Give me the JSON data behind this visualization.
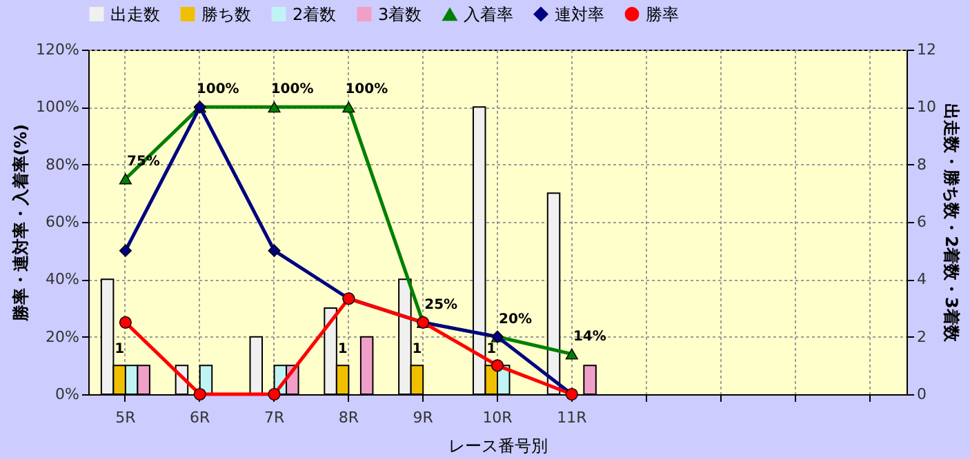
{
  "chart_data": {
    "type": "bar",
    "categories": [
      "5R",
      "6R",
      "7R",
      "8R",
      "9R",
      "10R",
      "11R",
      null,
      null,
      null,
      null
    ],
    "xlabel": "レース番号別",
    "ylabel": "勝率・連対率・入着率(%)",
    "y2label": "出走数・勝ち数・2着数・3着数",
    "ylim": [
      0,
      120
    ],
    "yticks": [
      {
        "value": 0,
        "label": "0%"
      },
      {
        "value": 20,
        "label": "20%"
      },
      {
        "value": 40,
        "label": "40%"
      },
      {
        "value": 60,
        "label": "60%"
      },
      {
        "value": 80,
        "label": "80%"
      },
      {
        "value": 100,
        "label": "100%"
      },
      {
        "value": 120,
        "label": "120%"
      }
    ],
    "y2lim": [
      0,
      12
    ],
    "y2ticks": [
      0,
      2,
      4,
      6,
      8,
      10,
      12
    ],
    "grid": true,
    "legend": "top",
    "series": [
      {
        "name": "出走数",
        "type": "bar",
        "axis": "y2",
        "color": "#f0f0f0",
        "values": [
          4,
          1,
          2,
          3,
          4,
          10,
          7,
          null,
          null,
          null,
          null
        ]
      },
      {
        "name": "勝ち数",
        "type": "bar",
        "axis": "y2",
        "color": "#f0c000",
        "values": [
          1,
          0,
          0,
          1,
          1,
          1,
          0,
          null,
          null,
          null,
          null
        ],
        "value_labels": [
          "1",
          null,
          null,
          "1",
          "1",
          "1",
          null,
          null,
          null,
          null,
          null
        ]
      },
      {
        "name": "2着数",
        "type": "bar",
        "axis": "y2",
        "color": "#c0f4f4",
        "values": [
          1,
          1,
          1,
          0,
          0,
          1,
          0,
          null,
          null,
          null,
          null
        ]
      },
      {
        "name": "3着数",
        "type": "bar",
        "axis": "y2",
        "color": "#f0a0c8",
        "values": [
          1,
          0,
          1,
          2,
          0,
          0,
          1,
          null,
          null,
          null,
          null
        ]
      },
      {
        "name": "入着率",
        "type": "line",
        "color": "#008000",
        "marker": "triangle",
        "values": [
          75,
          100,
          100,
          100,
          25,
          20,
          14,
          null,
          null,
          null,
          null
        ],
        "value_labels": [
          "75%",
          "100%",
          "100%",
          "100%",
          "25%",
          "20%",
          "14%",
          null,
          null,
          null,
          null
        ]
      },
      {
        "name": "連対率",
        "type": "line",
        "color": "#000080",
        "marker": "diamond",
        "values": [
          50,
          100,
          50,
          33.3,
          25,
          20,
          0,
          null,
          null,
          null,
          null
        ]
      },
      {
        "name": "勝率",
        "type": "line",
        "color": "#ff0000",
        "marker": "circle",
        "values": [
          25,
          0,
          0,
          33.3,
          25,
          10,
          0,
          null,
          null,
          null,
          null
        ]
      }
    ]
  }
}
